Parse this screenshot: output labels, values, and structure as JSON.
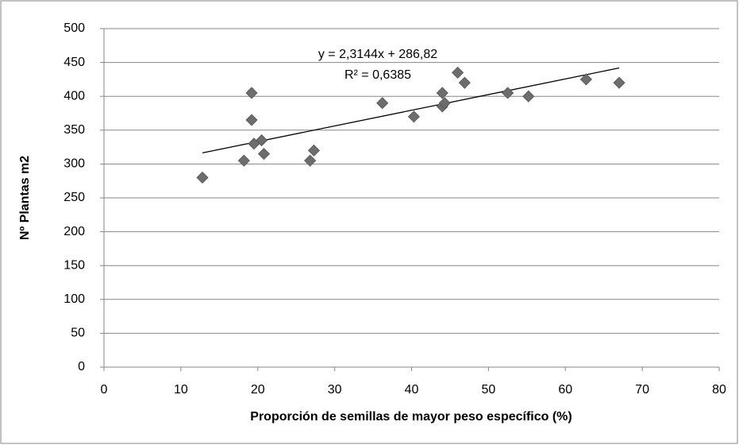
{
  "chart_data": {
    "type": "scatter",
    "xlabel": "Proporción de semillas de mayor peso específico (%)",
    "ylabel": "Nº Plantas m2",
    "x": [
      12.8,
      18.2,
      19.2,
      19.2,
      19.5,
      20.5,
      20.8,
      26.8,
      27.3,
      36.2,
      40.3,
      44.0,
      44.0,
      44.3,
      46.0,
      46.9,
      52.5,
      55.2,
      62.7,
      67.0
    ],
    "values": [
      280,
      305,
      405,
      365,
      330,
      335,
      315,
      305,
      320,
      390,
      370,
      405,
      385,
      390,
      435,
      420,
      405,
      400,
      425,
      420
    ],
    "color": "#6d6d6d",
    "xlim": [
      0,
      80
    ],
    "xticks": [
      0,
      10,
      20,
      30,
      40,
      50,
      60,
      70,
      80
    ],
    "ylim": [
      0,
      500
    ],
    "yticks": [
      0,
      50,
      100,
      150,
      200,
      250,
      300,
      350,
      400,
      450,
      500
    ],
    "grid": true,
    "trendline": {
      "slope": 2.3144,
      "intercept": 286.82,
      "equation": "y = 2,3144x + 286,82",
      "r_squared": "R² = 0,6385"
    }
  }
}
